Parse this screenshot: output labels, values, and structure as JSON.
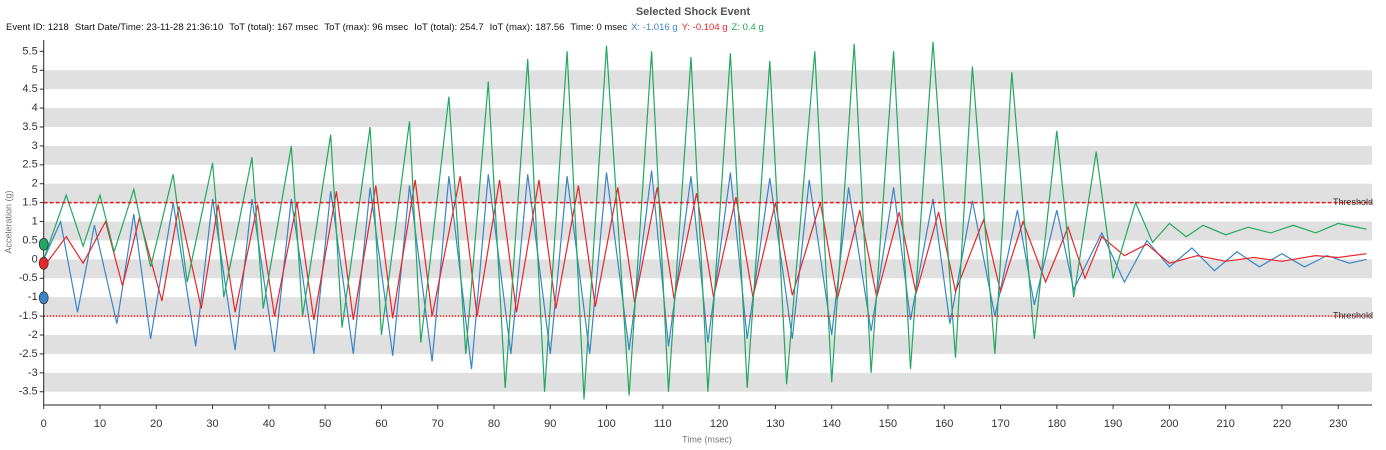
{
  "chart_data": {
    "type": "line",
    "title": "Selected Shock Event",
    "info": [
      "Event ID: 1218",
      "Start Date/Time: 23-11-28 21:36:10",
      "ToT (total): 167 msec",
      "ToT (max): 96 msec",
      "IoT (total): 254.7",
      "IoT (max): 187.56",
      "Time: 0 msec"
    ],
    "readout": [
      {
        "value": -1.016,
        "label": "X: -1.016 g"
      },
      {
        "value": -0.104,
        "label": "Y: -0.104 g"
      },
      {
        "value": 0.4,
        "label": "Z: 0.4 g"
      }
    ],
    "x_label": "Time (msec)",
    "y_label": "Acceleration (g)",
    "xlim": [
      0,
      236
    ],
    "ylim": [
      -3.85,
      5.8
    ],
    "xticks": [
      0,
      10,
      20,
      30,
      40,
      50,
      60,
      70,
      80,
      90,
      100,
      110,
      120,
      130,
      140,
      150,
      160,
      170,
      180,
      190,
      200,
      210,
      220,
      230
    ],
    "yticks": [
      -3.5,
      -3,
      -2.5,
      -2,
      -1.5,
      -1,
      -0.5,
      0,
      0.5,
      1,
      1.5,
      2,
      2.5,
      3,
      3.5,
      4,
      4.5,
      5,
      5.5
    ],
    "grid": "bands",
    "thresholds": [
      {
        "value": 1.5,
        "label": "Threshold",
        "style": "dashed"
      },
      {
        "value": -1.5,
        "label": "Threshold",
        "style": "dotted"
      }
    ],
    "threshold_color": "#e31a1c",
    "series": [
      {
        "color": "#3a85c9",
        "x": [
          0,
          3,
          6,
          9,
          13,
          16,
          19,
          23,
          27,
          30,
          34,
          37,
          41,
          44,
          48,
          51,
          55,
          58,
          62,
          65,
          69,
          72,
          76,
          79,
          83,
          86,
          90,
          93,
          97,
          100,
          104,
          108,
          111,
          115,
          118,
          122,
          125,
          129,
          133,
          136,
          140,
          143,
          147,
          151,
          154,
          158,
          161,
          165,
          169,
          173,
          176,
          180,
          183,
          188,
          192,
          196,
          200,
          204,
          208,
          212,
          216,
          220,
          224,
          228,
          232,
          235
        ],
        "values": [
          0,
          1.0,
          -1.4,
          0.9,
          -1.7,
          1.2,
          -2.1,
          1.5,
          -2.3,
          1.6,
          -2.4,
          1.6,
          -2.45,
          1.6,
          -2.5,
          1.8,
          -2.5,
          1.9,
          -2.55,
          1.95,
          -2.7,
          2.2,
          -2.9,
          2.25,
          -2.5,
          2.25,
          -2.5,
          2.2,
          -2.5,
          2.3,
          -2.4,
          2.35,
          -2.3,
          2.2,
          -2.2,
          2.3,
          -2.1,
          2.15,
          -2.1,
          2.1,
          -2.0,
          1.9,
          -1.9,
          1.9,
          -1.6,
          1.6,
          -1.7,
          1.55,
          -1.5,
          1.3,
          -1.2,
          1.3,
          -0.8,
          0.7,
          -0.6,
          0.5,
          -0.2,
          0.3,
          -0.3,
          0.2,
          -0.2,
          0.15,
          -0.2,
          0.1,
          -0.1,
          0
        ]
      },
      {
        "color": "#e8262b",
        "x": [
          0,
          4,
          7,
          11,
          14,
          17,
          21,
          24,
          28,
          31,
          34,
          38,
          41,
          45,
          48,
          52,
          55,
          59,
          62,
          66,
          69,
          74,
          77,
          81,
          84,
          88,
          91,
          95,
          98,
          102,
          105,
          109,
          112,
          116,
          119,
          123,
          126,
          130,
          133,
          138,
          141,
          145,
          148,
          152,
          155,
          159,
          162,
          167,
          170,
          174,
          178,
          182,
          185,
          188,
          192,
          196,
          200,
          205,
          210,
          215,
          220,
          226,
          230,
          235
        ],
        "values": [
          -0.2,
          0.6,
          -0.1,
          1.0,
          -0.7,
          1.1,
          -1.1,
          1.4,
          -1.3,
          1.45,
          -1.4,
          1.45,
          -1.5,
          1.5,
          -1.6,
          1.8,
          -1.6,
          1.95,
          -1.55,
          2.1,
          -1.5,
          2.2,
          -1.5,
          2.1,
          -1.4,
          2.1,
          -1.3,
          1.95,
          -1.25,
          1.9,
          -1.15,
          1.9,
          -1.05,
          1.75,
          -1.0,
          1.65,
          -1.0,
          1.5,
          -0.95,
          1.5,
          -1.05,
          1.3,
          -1.0,
          1.25,
          -0.9,
          1.25,
          -0.85,
          1.05,
          -0.85,
          1.0,
          -0.6,
          0.85,
          -0.5,
          0.6,
          0.1,
          0.4,
          -0.1,
          0.1,
          -0.05,
          0.05,
          -0.05,
          0.1,
          0.05,
          0.15
        ]
      },
      {
        "color": "#22a862",
        "x": [
          0,
          4,
          7,
          10,
          12.5,
          16,
          19,
          23,
          25.5,
          30,
          32,
          37,
          39,
          44,
          46,
          51,
          53,
          58,
          60,
          65,
          67,
          72,
          75,
          79,
          82,
          86,
          89,
          93,
          96,
          100,
          104,
          108,
          111,
          115,
          118,
          122,
          125,
          129,
          132,
          137,
          140,
          144,
          147,
          151,
          154,
          158,
          162,
          165,
          169,
          172,
          176,
          180,
          183,
          187,
          190,
          194,
          197,
          200,
          203,
          206,
          210,
          214,
          218,
          222,
          226,
          230,
          235
        ],
        "values": [
          0,
          1.7,
          0.35,
          1.7,
          0.2,
          1.85,
          -0.2,
          2.25,
          -0.6,
          2.55,
          -1.0,
          2.7,
          -1.3,
          3.0,
          -1.5,
          3.3,
          -1.8,
          3.5,
          -2.0,
          3.65,
          -2.2,
          4.3,
          -2.5,
          4.7,
          -3.4,
          5.3,
          -3.5,
          5.5,
          -3.7,
          5.65,
          -3.6,
          5.5,
          -3.5,
          5.35,
          -3.5,
          5.45,
          -3.4,
          5.25,
          -3.3,
          5.5,
          -3.25,
          5.7,
          -3.0,
          5.5,
          -2.9,
          5.75,
          -2.6,
          5.1,
          -2.5,
          4.95,
          -2.1,
          3.4,
          -1.0,
          2.85,
          -0.5,
          1.5,
          0.45,
          0.95,
          0.6,
          0.9,
          0.65,
          0.85,
          0.7,
          0.9,
          0.7,
          0.95,
          0.8
        ]
      }
    ]
  }
}
